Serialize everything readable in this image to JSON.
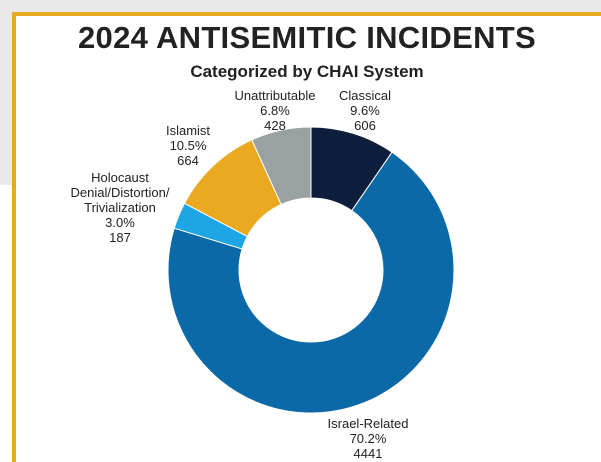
{
  "chart_data": {
    "type": "donut",
    "title": "2024 ANTISEMITIC INCIDENTS",
    "subtitle": "Categorized by CHAI System",
    "categories": [
      "Classical",
      "Israel-Related",
      "Holocaust\nDenial/Distortion/\nTrivialization",
      "Islamist",
      "Unattributable"
    ],
    "values": [
      9.6,
      70.2,
      3.0,
      10.5,
      6.8
    ],
    "value_labels": [
      "9.6%",
      "70.2%",
      "3.0%",
      "10.5%",
      "6.8%"
    ],
    "counts": [
      606,
      4441,
      187,
      664,
      428
    ],
    "colors": [
      "#0d1f3c",
      "#0b69a8",
      "#1ea5e6",
      "#eaa921",
      "#9aa1a3"
    ]
  }
}
